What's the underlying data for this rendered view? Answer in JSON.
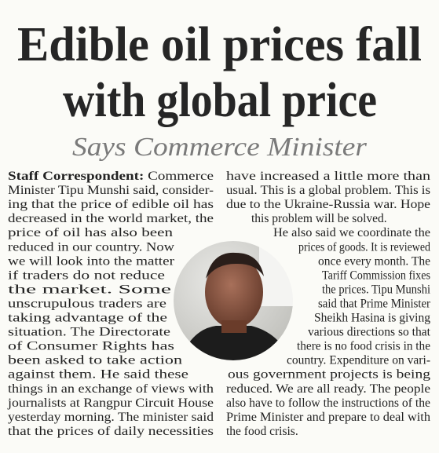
{
  "headline": [
    "Edible oil prices fall",
    "with global price"
  ],
  "subheadline": "Says Commerce Minister",
  "byline": "Staff Correspondent:",
  "columns": [
    [
      "Commerce",
      "Minister Tipu Munshi said, consider-",
      "ing that the price of edible oil has",
      "decreased in the world market, the",
      "price of oil has also been",
      "reduced in our country. Now",
      "we will look into the matter",
      "if traders do not reduce",
      "the market. Some",
      "unscrupulous traders are",
      "taking advantage of the",
      "situation. The Directorate",
      "of Consumer Rights has",
      "been asked to take action",
      "against them. He said these",
      "things in an exchange of views with",
      "journalists at Rangpur Circuit House",
      "yesterday morning. The minister said",
      "that the prices of daily necessities"
    ],
    [
      "have increased a little more than",
      "usual. This is a global problem. This is",
      "due to the Ukraine-Russia war. Hope",
      "this problem will be solved.",
      "He also said we coordinate the",
      "prices of goods. It is reviewed",
      "once every month. The",
      "Tariff Commission fixes",
      "the prices. Tipu Munshi",
      "said that Prime Minister",
      "Sheikh Hasina is giving",
      "various directions so that",
      "there is no food crisis in the",
      "country. Expenditure on vari-",
      "ous government projects is being",
      "reduced. We are all ready. The people",
      "also have to follow the instructions of the",
      "Prime Minister and prepare to deal with",
      "the food crisis."
    ]
  ]
}
